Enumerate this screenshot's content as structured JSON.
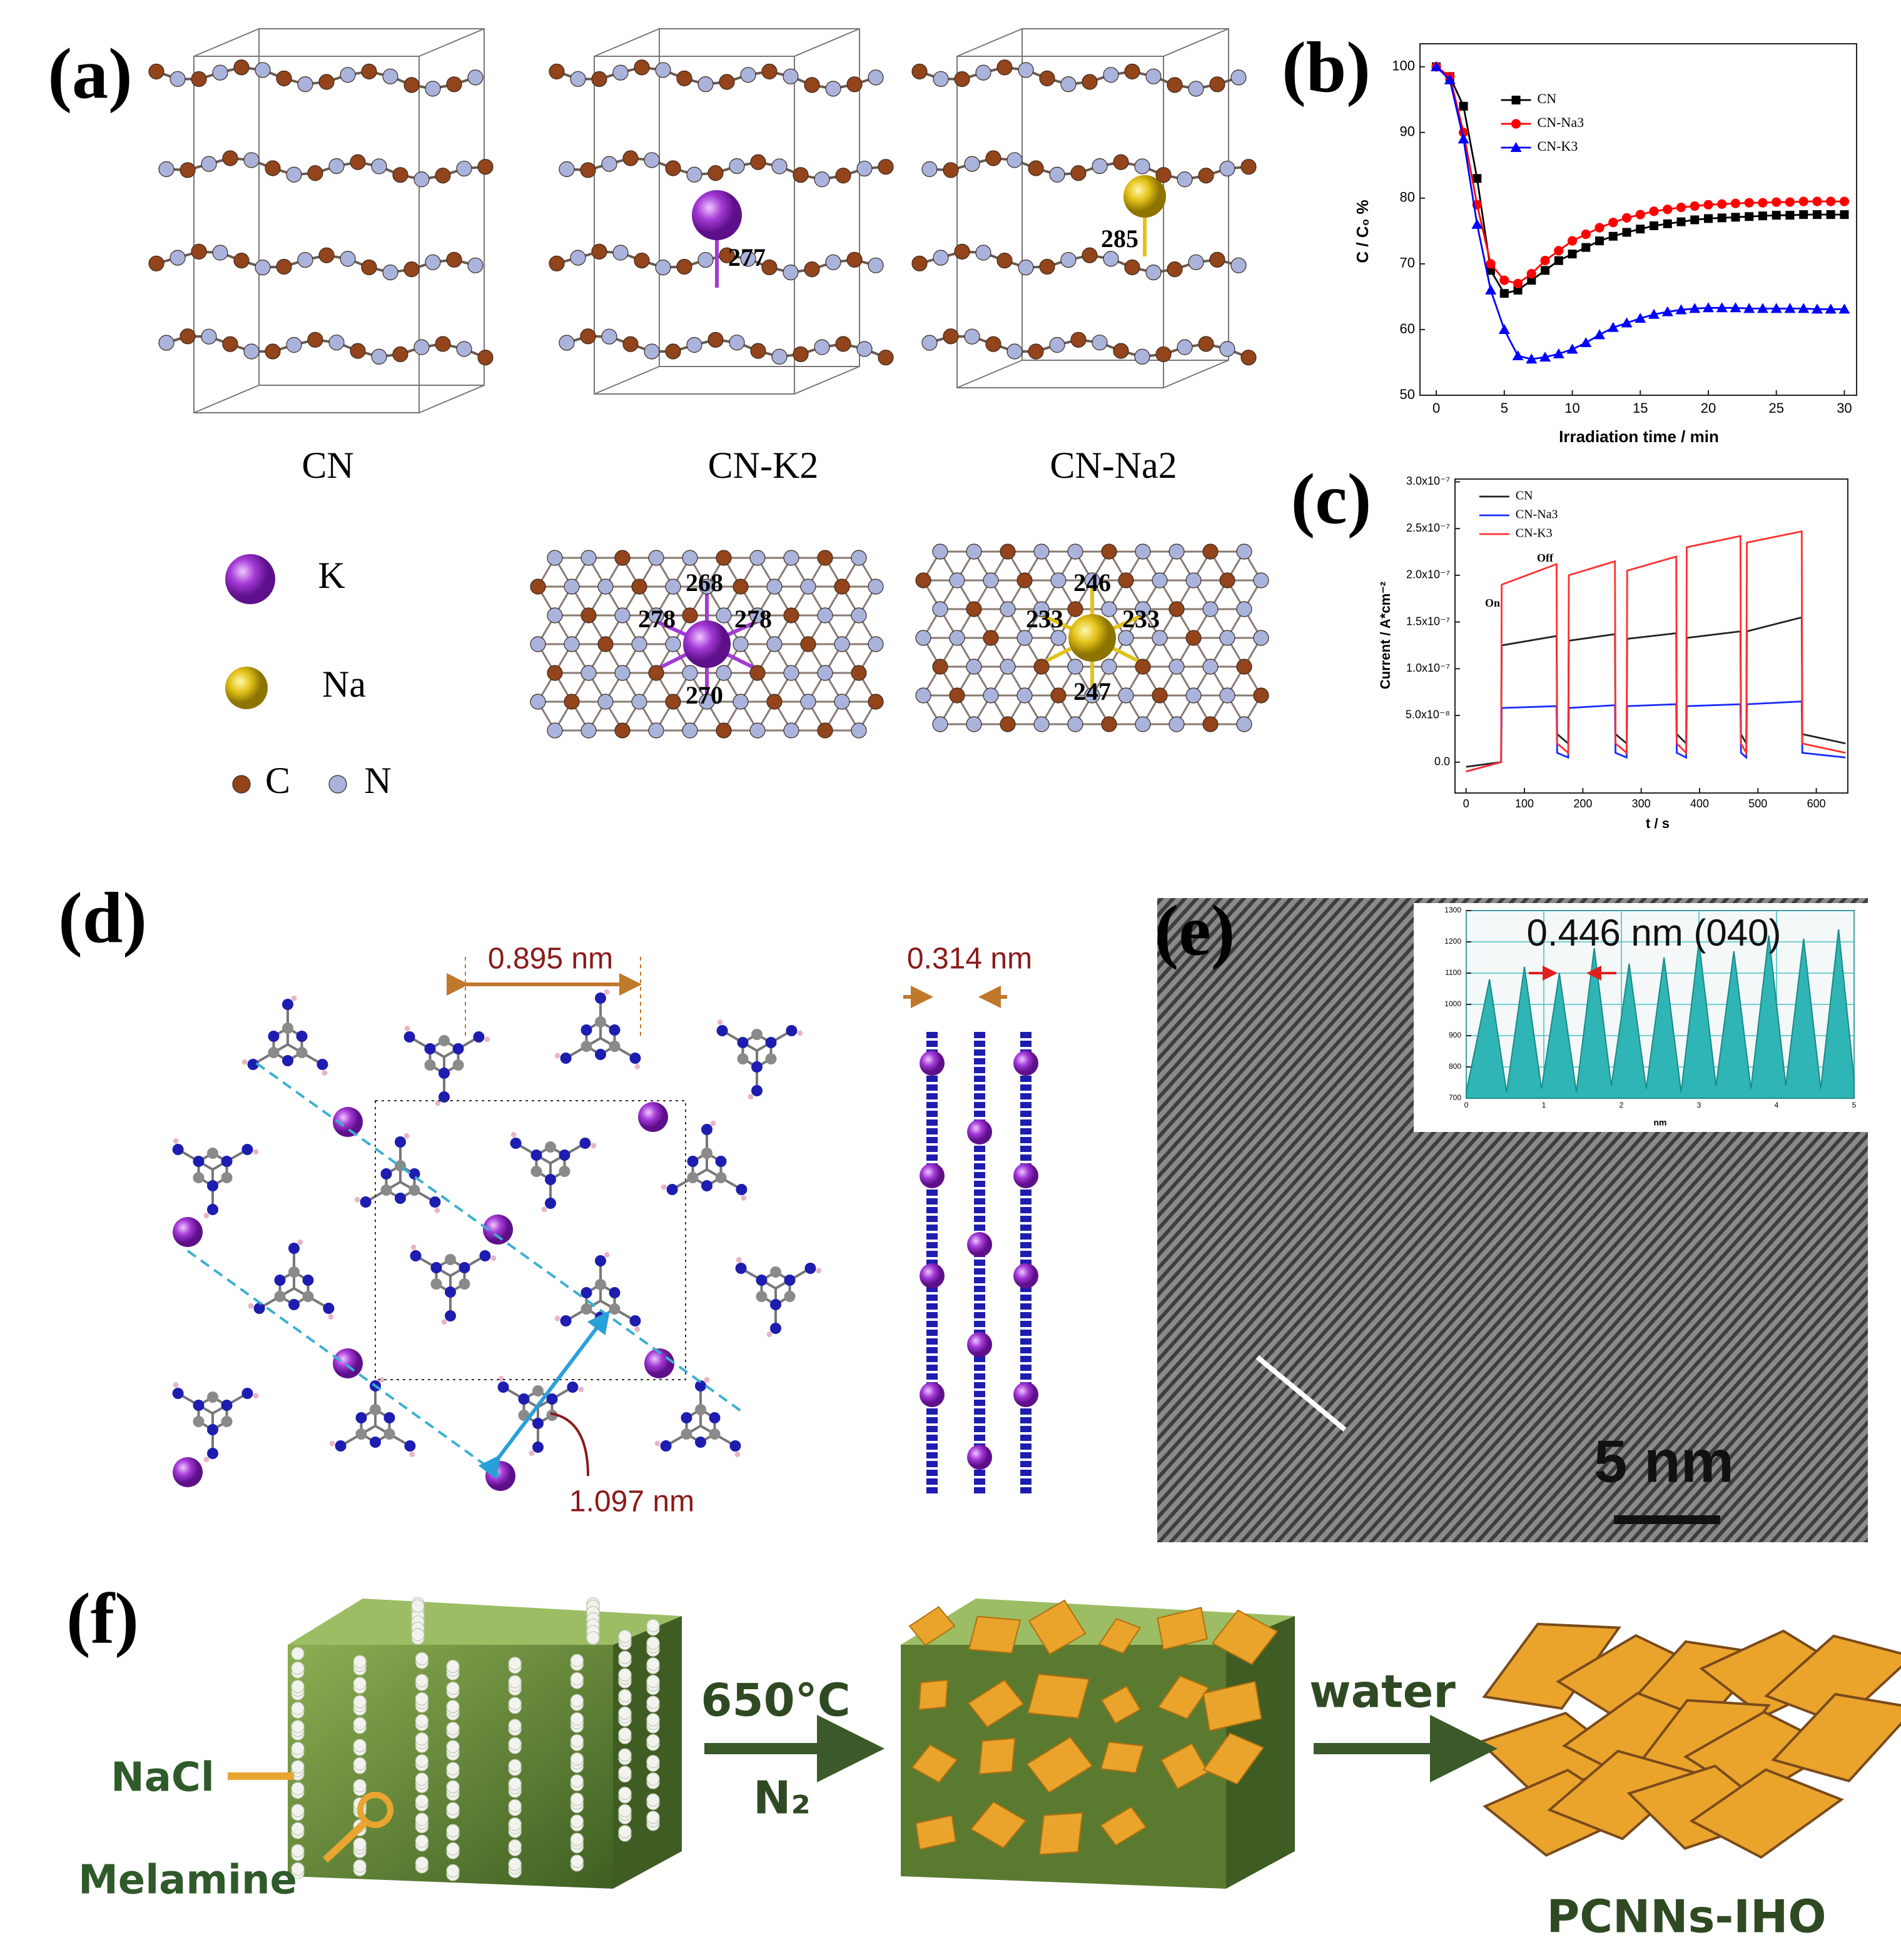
{
  "panels": {
    "a": {
      "label": "(a)",
      "structures": [
        "CN",
        "CN-K2",
        "CN-Na2"
      ],
      "bond_k2": "277",
      "bond_na2": "285",
      "legend": {
        "k": "K",
        "na": "Na",
        "c": "C",
        "n": "N"
      },
      "top_k": [
        "268",
        "278",
        "278",
        "270"
      ],
      "top_na": [
        "246",
        "233",
        "233",
        "247"
      ]
    },
    "b": {
      "label": "(b)"
    },
    "c": {
      "label": "(c)"
    },
    "d": {
      "label": "(d)",
      "distances": [
        "0.895 nm",
        "0.314 nm",
        "1.097 nm"
      ]
    },
    "e": {
      "label": "(e)",
      "annotation": "0.446 nm  (040)",
      "scale_bar": "5 nm"
    },
    "f": {
      "label": "(f)",
      "nacl": "NaCl",
      "melamine": "Melamine",
      "temperature": "650°C",
      "atmosphere": "N₂",
      "solvent": "water",
      "product": "PCNNs-IHO"
    }
  },
  "chart_data": [
    {
      "type": "line",
      "xlabel": "Irradiation time / min",
      "ylabel": "C / C₀ %",
      "x": [
        0,
        1,
        2,
        3,
        4,
        5,
        6,
        7,
        8,
        9,
        10,
        11,
        12,
        13,
        14,
        15,
        16,
        17,
        18,
        19,
        20,
        21,
        22,
        23,
        24,
        25,
        26,
        27,
        28,
        29,
        30
      ],
      "series": [
        {
          "name": "CN",
          "color": "#000000",
          "marker": "square",
          "values": [
            100,
            98.5,
            94,
            83,
            69,
            65.5,
            66,
            67.5,
            69,
            70.5,
            71.5,
            72.5,
            73.5,
            74.2,
            74.8,
            75.3,
            75.8,
            76.1,
            76.4,
            76.7,
            76.9,
            77,
            77.1,
            77.2,
            77.3,
            77.4,
            77.4,
            77.5,
            77.5,
            77.5,
            77.5
          ]
        },
        {
          "name": "CN-Na3",
          "color": "#ff0000",
          "marker": "circle",
          "values": [
            100,
            98.5,
            90,
            79,
            70,
            67.5,
            67,
            68.5,
            70.5,
            72,
            73.5,
            74.5,
            75.5,
            76.3,
            77,
            77.5,
            78,
            78.3,
            78.6,
            78.8,
            79,
            79.1,
            79.2,
            79.3,
            79.3,
            79.4,
            79.4,
            79.5,
            79.5,
            79.5,
            79.5
          ]
        },
        {
          "name": "CN-K3",
          "color": "#0000ff",
          "marker": "triangle",
          "values": [
            100,
            98,
            89,
            76,
            66,
            60,
            56,
            55.5,
            55.8,
            56.3,
            57,
            58,
            59.2,
            60.3,
            61,
            61.7,
            62.3,
            62.7,
            63,
            63.2,
            63.3,
            63.3,
            63.3,
            63.2,
            63.2,
            63.2,
            63.2,
            63.2,
            63.1,
            63.1,
            63.1
          ]
        }
      ],
      "xlim": [
        -1.2,
        30.9
      ],
      "ylim": [
        50,
        103.5
      ],
      "xticks": [
        0,
        5,
        10,
        15,
        20,
        25,
        30
      ],
      "yticks": [
        50,
        60,
        70,
        80,
        90,
        100
      ],
      "grid": false,
      "legend": "upper center"
    },
    {
      "type": "line",
      "xlabel": "t / s",
      "ylabel": "Current / A*cm⁻²",
      "annotations": [
        "On",
        "Off"
      ],
      "x": [
        0,
        60,
        61,
        155,
        156,
        175,
        176,
        255,
        256,
        275,
        276,
        360,
        361,
        377,
        378,
        470,
        471,
        480,
        481,
        575,
        576,
        650
      ],
      "series": [
        {
          "name": "CN",
          "color": "#222222",
          "values": [
            -5e-09,
            0,
            1.25e-07,
            1.35e-07,
            3e-08,
            2e-08,
            1.3e-07,
            1.37e-07,
            3e-08,
            2e-08,
            1.32e-07,
            1.38e-07,
            3e-08,
            2e-08,
            1.33e-07,
            1.4e-07,
            3e-08,
            2e-08,
            1.4e-07,
            1.55e-07,
            3e-08,
            2e-08
          ]
        },
        {
          "name": "CN-Na3",
          "color": "#1a2bff",
          "values": [
            -1e-08,
            0,
            5.8e-08,
            6e-08,
            1e-08,
            5e-09,
            5.8e-08,
            6.1e-08,
            1e-08,
            5e-09,
            6e-08,
            6.2e-08,
            1e-08,
            5e-09,
            6e-08,
            6.2e-08,
            1e-08,
            5e-09,
            6.2e-08,
            6.5e-08,
            1e-08,
            5e-09
          ]
        },
        {
          "name": "CN-K3",
          "color": "#ff3030",
          "values": [
            -1e-08,
            0,
            1.9e-07,
            2.12e-07,
            2e-08,
            1e-08,
            2e-07,
            2.15e-07,
            2e-08,
            1e-08,
            2.05e-07,
            2.2e-07,
            2e-08,
            1e-08,
            2.3e-07,
            2.42e-07,
            2e-08,
            1e-08,
            2.35e-07,
            2.47e-07,
            2e-08,
            1e-08
          ]
        }
      ],
      "xlim": [
        -19,
        654
      ],
      "ylim": [
        -3.3e-08,
        3.03e-07
      ],
      "xticks": [
        0,
        100,
        200,
        300,
        400,
        500,
        600
      ],
      "yticks": [
        {
          "value": 0,
          "label": "0.0"
        },
        {
          "value": 5e-08,
          "label": "5.0x10⁻⁸"
        },
        {
          "value": 1e-07,
          "label": "1.0x10⁻⁷"
        },
        {
          "value": 1.5e-07,
          "label": "1.5x10⁻⁷"
        },
        {
          "value": 2e-07,
          "label": "2.0x10⁻⁷"
        },
        {
          "value": 2.5e-07,
          "label": "2.5x10⁻⁷"
        },
        {
          "value": 3e-07,
          "label": "3.0x10⁻⁷"
        }
      ],
      "grid": false,
      "legend": "upper left"
    },
    {
      "type": "area",
      "xlabel": "nm",
      "x": [
        0,
        0.3,
        0.52,
        0.75,
        0.97,
        1.2,
        1.42,
        1.65,
        1.87,
        2.1,
        2.32,
        2.55,
        2.77,
        3,
        3.22,
        3.45,
        3.67,
        3.9,
        4.12,
        4.35,
        4.57,
        4.8,
        5
      ],
      "series": [
        {
          "color": "#2fb5b5",
          "values": [
            720,
            1080,
            720,
            1120,
            730,
            1100,
            720,
            1180,
            740,
            1130,
            730,
            1150,
            720,
            1200,
            740,
            1170,
            730,
            1220,
            740,
            1210,
            730,
            1240,
            760
          ]
        }
      ],
      "xlim": [
        0,
        5
      ],
      "ylim": [
        700,
        1300
      ],
      "xticks": [
        0,
        1,
        2,
        3,
        4,
        5
      ],
      "yticks": [
        700,
        800,
        900,
        1000,
        1100,
        1200,
        1300
      ],
      "grid": true,
      "grid_color": "#45c4c8"
    }
  ]
}
